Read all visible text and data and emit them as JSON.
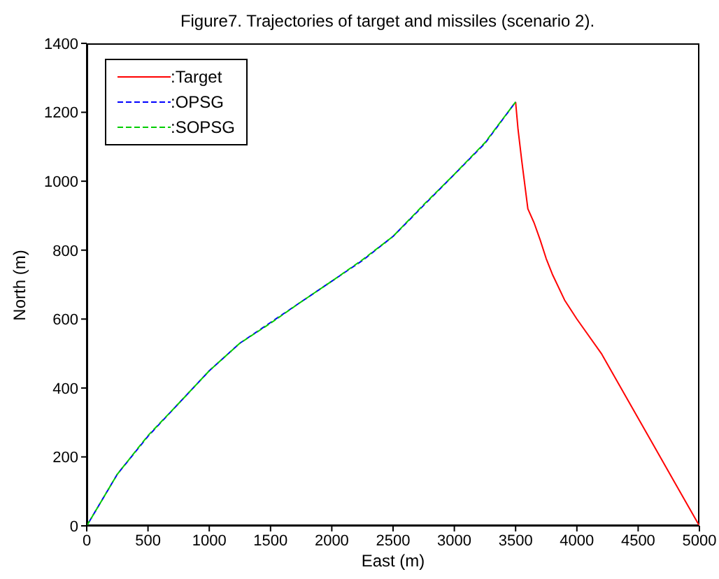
{
  "chart_data": {
    "type": "line",
    "title": "Figure7. Trajectories of target and missiles (scenario 2).",
    "xlabel": "East  (m)",
    "ylabel": "North  (m)",
    "xlim": [
      0,
      5000
    ],
    "xticks": [
      0,
      500,
      1000,
      1500,
      2000,
      2500,
      3000,
      3500,
      4000,
      4500,
      5000
    ],
    "ylim": [
      0,
      1400
    ],
    "yticks": [
      0,
      200,
      400,
      600,
      800,
      1000,
      1200,
      1400
    ],
    "legend": "top left",
    "marker": "none",
    "series": [
      {
        "name": ":Target",
        "color": "#ff0000",
        "line_style": "solid",
        "x": [
          5000,
          4800,
          4600,
          4400,
          4200,
          4000,
          3900,
          3800,
          3750,
          3700,
          3650,
          3600,
          3550,
          3520,
          3500
        ],
        "values": [
          0,
          125,
          250,
          375,
          500,
          600,
          655,
          730,
          775,
          830,
          880,
          920,
          1060,
          1150,
          1230
        ]
      },
      {
        "name": ":OPSG",
        "color": "#0000ff",
        "line_style": "dashed",
        "x": [
          0,
          250,
          500,
          750,
          1000,
          1250,
          1500,
          1750,
          2000,
          2250,
          2500,
          2750,
          3000,
          3250,
          3500
        ],
        "values": [
          0,
          150,
          260,
          355,
          450,
          530,
          590,
          650,
          710,
          770,
          840,
          930,
          1020,
          1110,
          1230
        ]
      },
      {
        "name": ":SOPSG",
        "color": "#00cc00",
        "line_style": "dashed",
        "x": [
          0,
          250,
          500,
          750,
          1000,
          1250,
          1500,
          1750,
          2000,
          2250,
          2500,
          2750,
          3000,
          3250,
          3500
        ],
        "values": [
          0,
          150,
          262,
          355,
          450,
          530,
          588,
          650,
          710,
          772,
          840,
          932,
          1020,
          1112,
          1230
        ]
      }
    ]
  }
}
